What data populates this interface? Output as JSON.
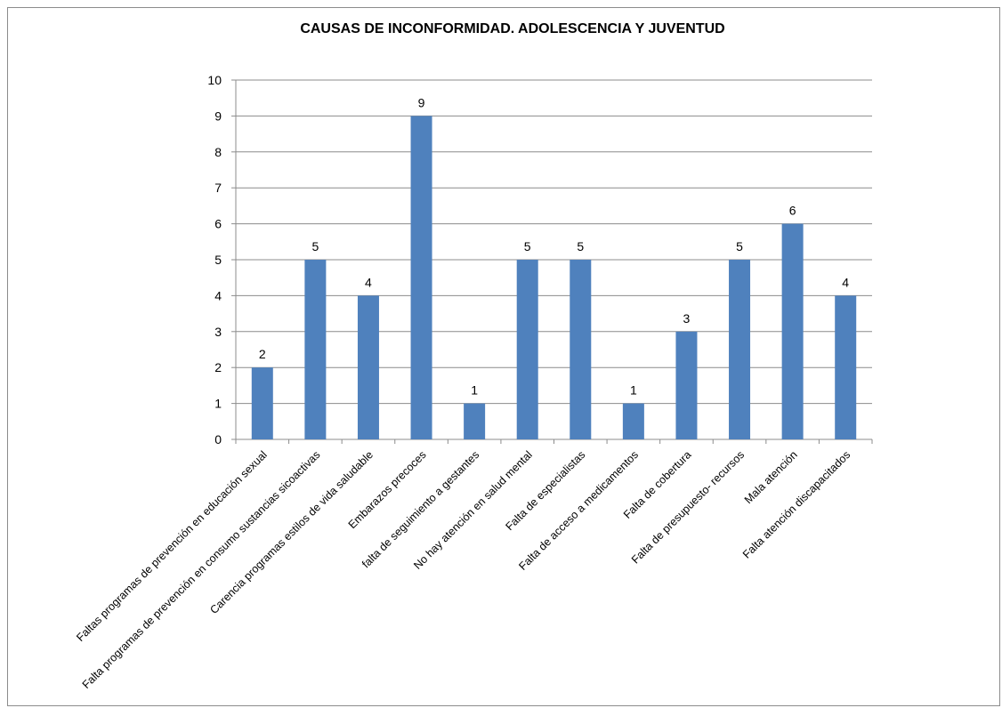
{
  "chart_data": {
    "type": "bar",
    "title": "CAUSAS DE INCONFORMIDAD. ADOLESCENCIA Y JUVENTUD",
    "xlabel": "",
    "ylabel": "",
    "ylim": [
      0,
      10
    ],
    "yticks": [
      0,
      1,
      2,
      3,
      4,
      5,
      6,
      7,
      8,
      9,
      10
    ],
    "grid": true,
    "legend": "none",
    "bar_color": "#4f81bd",
    "categories": [
      "Faltas programas de prevención en educación sexual",
      "Falta programas de prevención en consumo sustancias sicoactivas",
      "Carencia programas estilos de vida saludable",
      "Embarazos precoces",
      "falta de seguimiento a gestantes",
      "No hay atención en salud mental",
      "Falta de especialistas",
      "Falta de acceso a medicamentos",
      "Falta de cobertura",
      "Falta de presupuesto- recursos",
      "Mala atención",
      "Falta atención discapacitados"
    ],
    "values": [
      2,
      5,
      4,
      9,
      1,
      5,
      5,
      1,
      3,
      5,
      6,
      4
    ]
  }
}
